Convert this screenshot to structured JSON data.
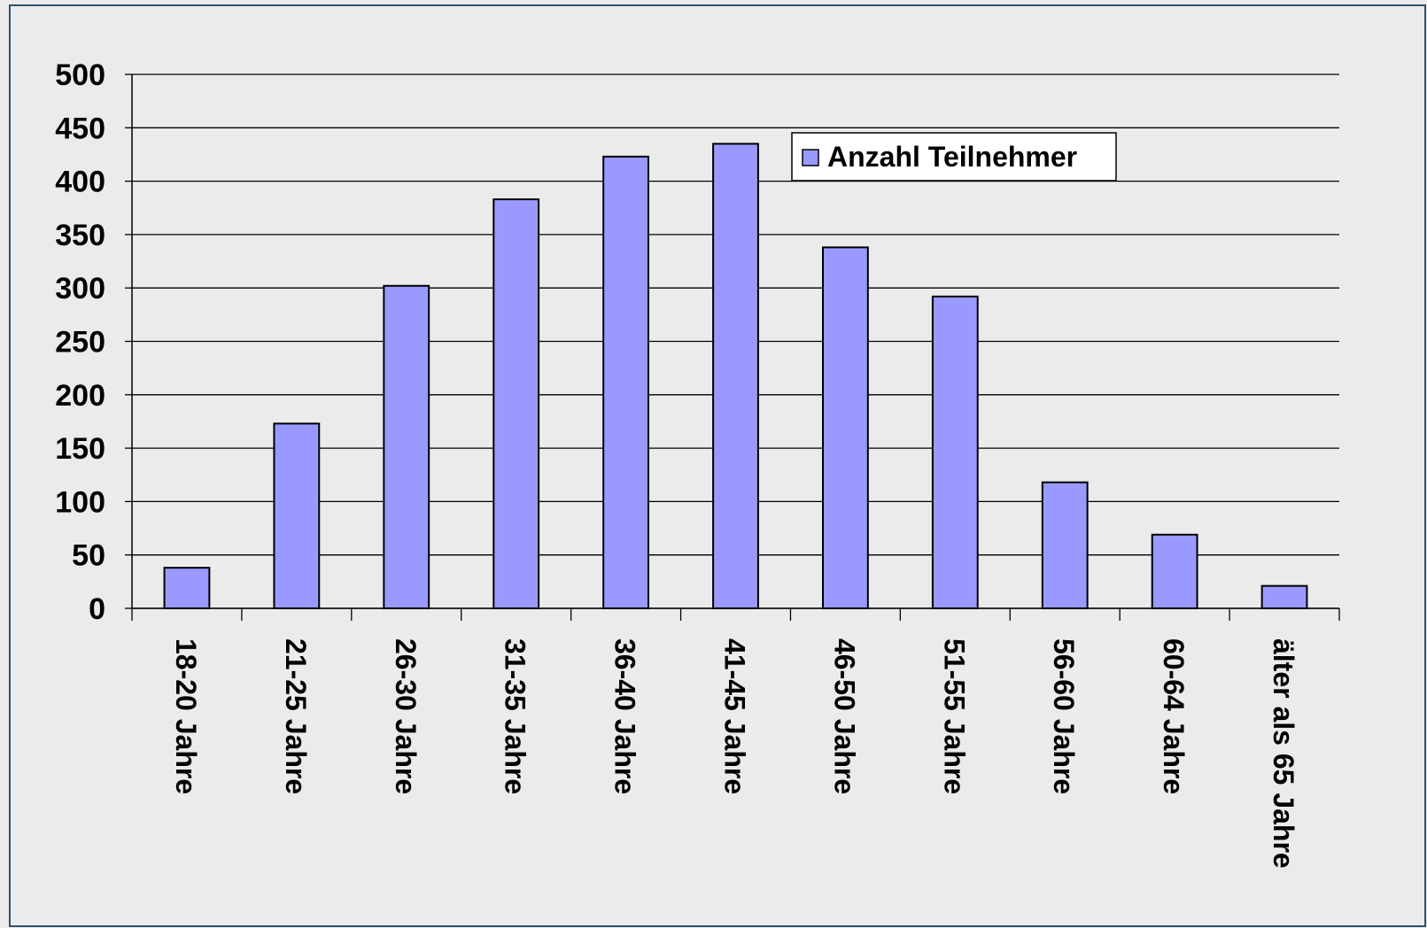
{
  "chart_data": {
    "type": "bar",
    "categories": [
      "18-20 Jahre",
      "21-25 Jahre",
      "26-30 Jahre",
      "31-35 Jahre",
      "36-40 Jahre",
      "41-45 Jahre",
      "46-50 Jahre",
      "51-55 Jahre",
      "56-60 Jahre",
      "60-64 Jahre",
      "älter als 65 Jahre"
    ],
    "series": [
      {
        "name": "Anzahl Teilnehmer",
        "color": "#9999ff",
        "values": [
          38,
          173,
          302,
          383,
          423,
          435,
          338,
          292,
          118,
          69,
          21
        ]
      }
    ],
    "ylim": [
      0,
      500
    ],
    "yticks": [
      0,
      50,
      100,
      150,
      200,
      250,
      300,
      350,
      400,
      450,
      500
    ],
    "grid": true,
    "legend": "top-right"
  }
}
